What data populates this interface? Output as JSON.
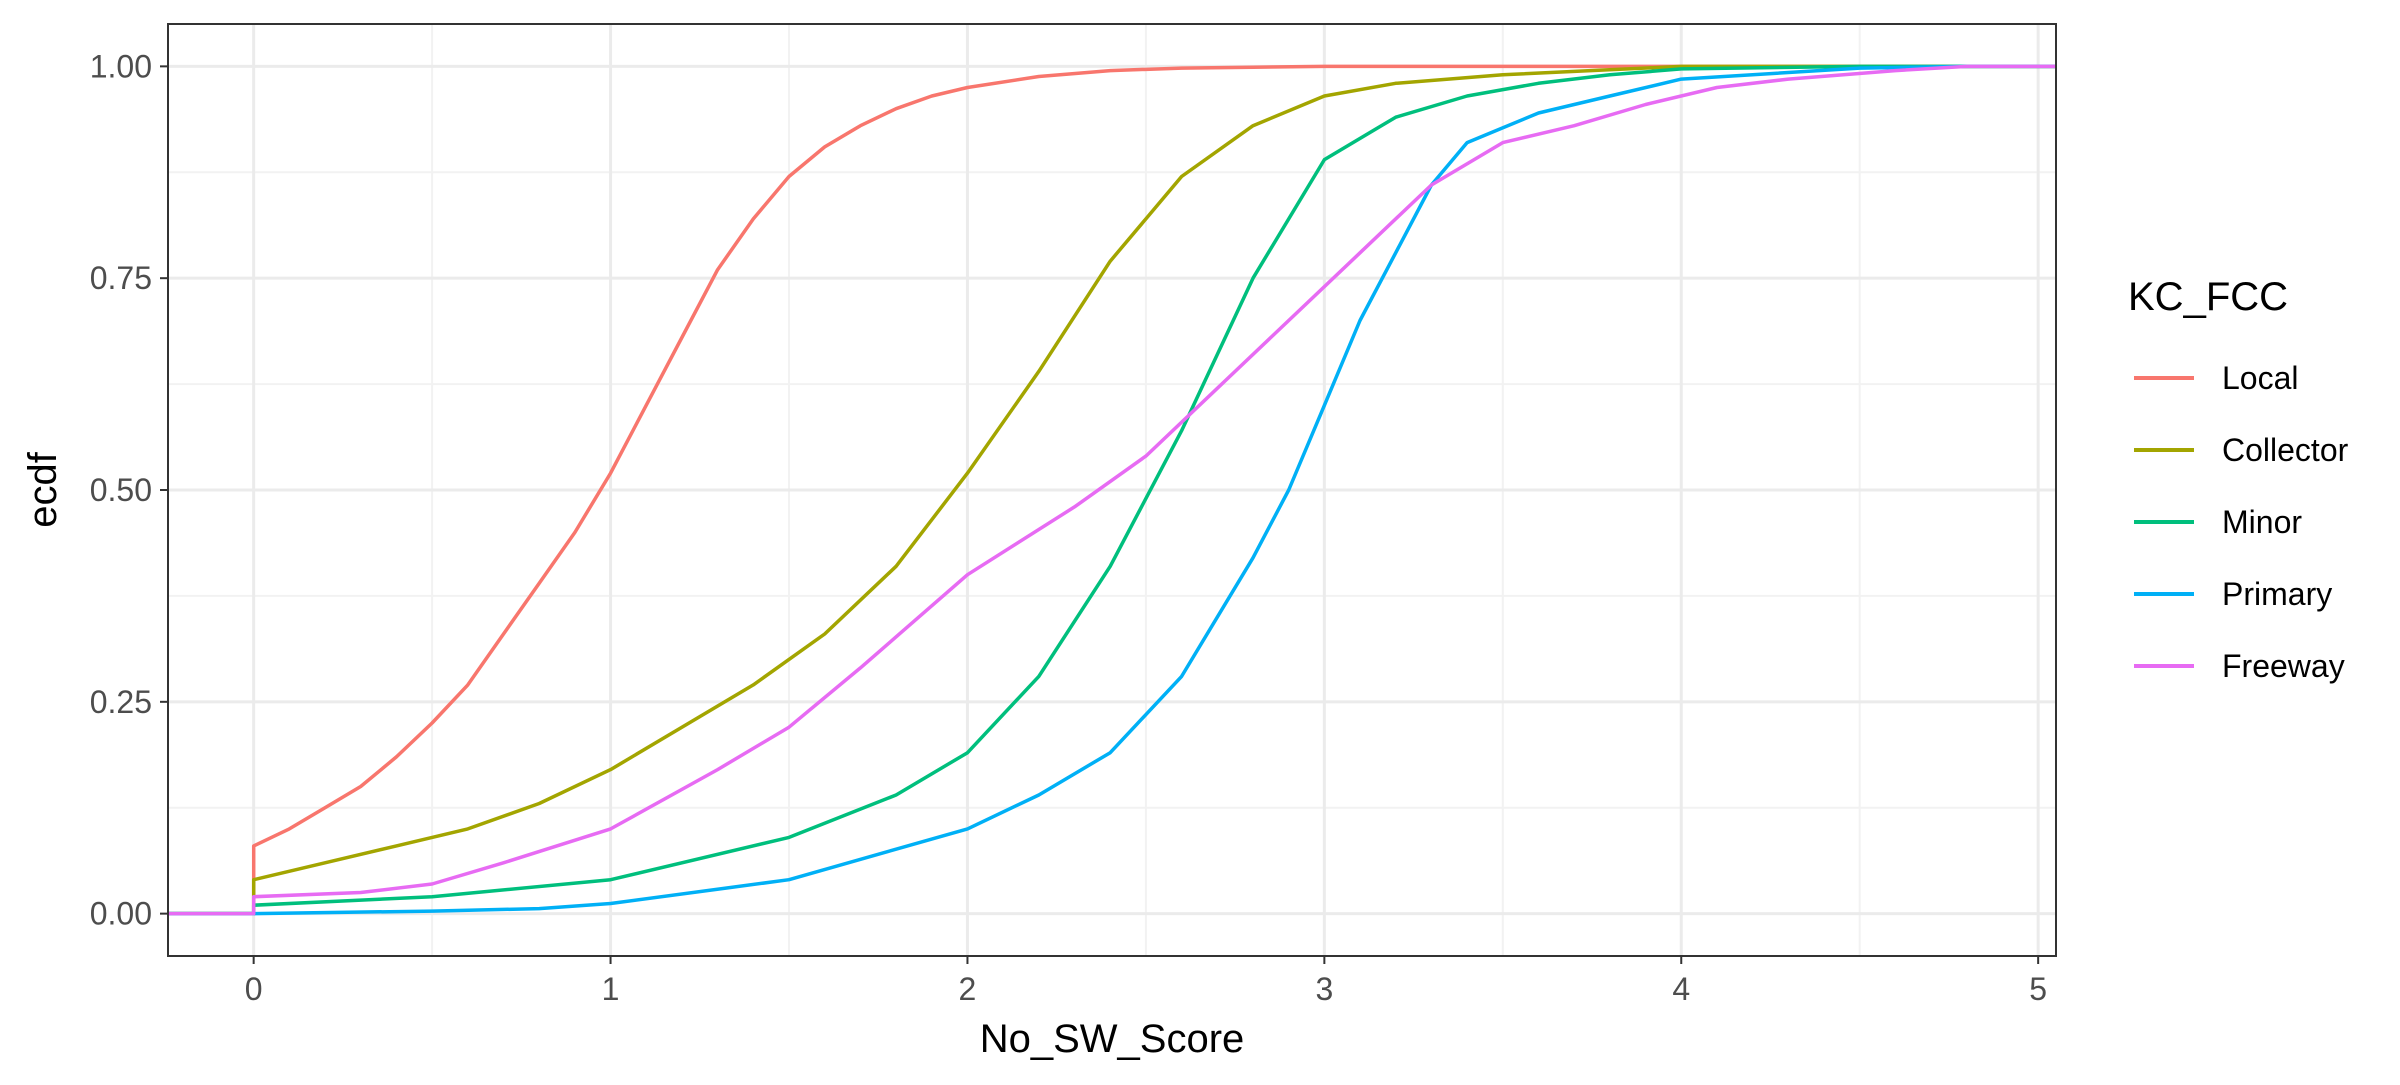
{
  "chart_data": {
    "type": "line",
    "title": "",
    "xlabel": "No_SW_Score",
    "ylabel": "ecdf",
    "xlim": [
      -0.24,
      5.05
    ],
    "ylim": [
      -0.05,
      1.05
    ],
    "x_ticks": [
      0,
      1,
      2,
      3,
      4,
      5
    ],
    "x_tick_labels": [
      "0",
      "1",
      "2",
      "3",
      "4",
      "5"
    ],
    "y_ticks": [
      0,
      0.25,
      0.5,
      0.75,
      1
    ],
    "y_tick_labels": [
      "0.00",
      "0.25",
      "0.50",
      "0.75",
      "1.00"
    ],
    "grid": true,
    "legend": {
      "title": "KC_FCC",
      "position": "right"
    },
    "series": [
      {
        "name": "Local",
        "color": "#F8766D",
        "x": [
          -0.24,
          0,
          0,
          0.1,
          0.2,
          0.3,
          0.4,
          0.5,
          0.6,
          0.7,
          0.8,
          0.9,
          1.0,
          1.1,
          1.2,
          1.3,
          1.4,
          1.5,
          1.6,
          1.7,
          1.8,
          1.9,
          2.0,
          2.2,
          2.4,
          2.6,
          2.8,
          3.0,
          5.05
        ],
        "y": [
          0,
          0,
          0.08,
          0.1,
          0.125,
          0.15,
          0.185,
          0.225,
          0.27,
          0.33,
          0.39,
          0.45,
          0.52,
          0.6,
          0.68,
          0.76,
          0.82,
          0.87,
          0.905,
          0.93,
          0.95,
          0.965,
          0.975,
          0.988,
          0.995,
          0.998,
          0.999,
          1.0,
          1.0
        ]
      },
      {
        "name": "Collector",
        "color": "#A3A500",
        "x": [
          -0.24,
          0,
          0,
          0.2,
          0.4,
          0.6,
          0.8,
          1.0,
          1.2,
          1.4,
          1.6,
          1.8,
          2.0,
          2.2,
          2.4,
          2.6,
          2.8,
          3.0,
          3.2,
          3.5,
          4.0,
          5.05
        ],
        "y": [
          0,
          0,
          0.04,
          0.06,
          0.08,
          0.1,
          0.13,
          0.17,
          0.22,
          0.27,
          0.33,
          0.41,
          0.52,
          0.64,
          0.77,
          0.87,
          0.93,
          0.965,
          0.98,
          0.99,
          1.0,
          1.0
        ]
      },
      {
        "name": "Minor",
        "color": "#00BF7D",
        "x": [
          -0.24,
          0,
          0,
          0.5,
          1.0,
          1.5,
          1.8,
          2.0,
          2.2,
          2.4,
          2.6,
          2.8,
          3.0,
          3.2,
          3.4,
          3.6,
          3.8,
          4.0,
          4.5,
          5.05
        ],
        "y": [
          0,
          0,
          0.01,
          0.02,
          0.04,
          0.09,
          0.14,
          0.19,
          0.28,
          0.41,
          0.57,
          0.75,
          0.89,
          0.94,
          0.965,
          0.98,
          0.99,
          0.997,
          1.0,
          1.0
        ]
      },
      {
        "name": "Primary",
        "color": "#00B0F6",
        "x": [
          -0.24,
          0,
          0,
          0.5,
          0.8,
          1.0,
          1.5,
          2.0,
          2.2,
          2.4,
          2.6,
          2.8,
          2.9,
          3.0,
          3.1,
          3.2,
          3.3,
          3.4,
          3.6,
          3.8,
          4.0,
          4.5,
          4.8,
          5.05
        ],
        "y": [
          0,
          0,
          0.0,
          0.003,
          0.006,
          0.012,
          0.04,
          0.1,
          0.14,
          0.19,
          0.28,
          0.42,
          0.5,
          0.6,
          0.7,
          0.78,
          0.86,
          0.91,
          0.945,
          0.965,
          0.985,
          0.998,
          1.0,
          1.0
        ]
      },
      {
        "name": "Freeway",
        "color": "#E76BF3",
        "x": [
          -0.24,
          0,
          0,
          0.3,
          0.5,
          0.7,
          1.0,
          1.3,
          1.5,
          1.7,
          2.0,
          2.3,
          2.5,
          2.7,
          2.9,
          3.1,
          3.3,
          3.5,
          3.7,
          3.9,
          4.1,
          4.3,
          4.6,
          4.8,
          5.05
        ],
        "y": [
          0,
          0,
          0.02,
          0.025,
          0.035,
          0.06,
          0.1,
          0.17,
          0.22,
          0.29,
          0.4,
          0.48,
          0.54,
          0.62,
          0.7,
          0.78,
          0.86,
          0.91,
          0.93,
          0.955,
          0.975,
          0.985,
          0.995,
          1.0,
          1.0
        ]
      }
    ]
  }
}
